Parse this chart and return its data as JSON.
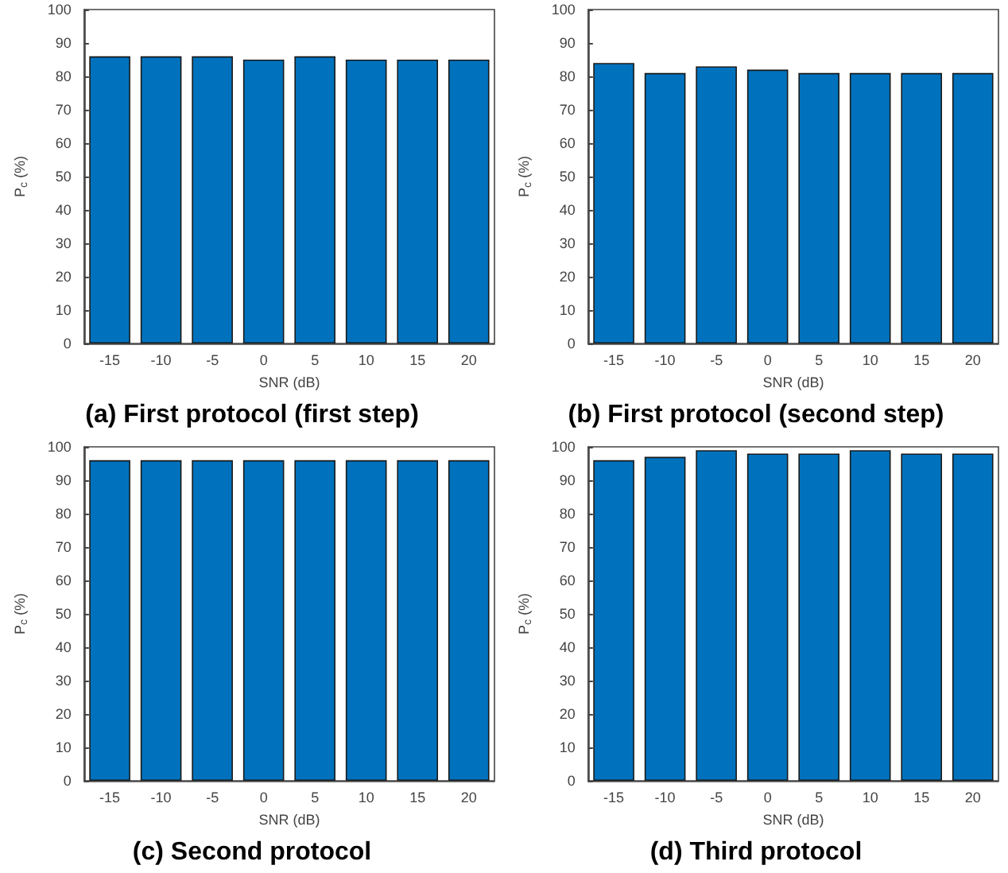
{
  "chart_data": [
    {
      "type": "bar",
      "title": "(a) First protocol (first step)",
      "xlabel": "SNR (dB)",
      "ylabel": "P$_{c}$ (%)",
      "categories": [
        "-15",
        "-10",
        "-5",
        "0",
        "5",
        "10",
        "15",
        "20"
      ],
      "values": [
        86,
        86,
        86,
        85,
        86,
        85,
        85,
        85
      ],
      "color": "#0072bd",
      "ylim": [
        0,
        100
      ],
      "yticks": [
        0,
        10,
        20,
        30,
        40,
        50,
        60,
        70,
        80,
        90,
        100
      ],
      "grid": false
    },
    {
      "type": "bar",
      "title": "(b) First protocol (second step)",
      "xlabel": "SNR (dB)",
      "ylabel": "P$_{c}$ (%)",
      "categories": [
        "-15",
        "-10",
        "-5",
        "0",
        "5",
        "10",
        "15",
        "20"
      ],
      "values": [
        84,
        81,
        83,
        82,
        81,
        81,
        81,
        81
      ],
      "color": "#0072bd",
      "ylim": [
        0,
        100
      ],
      "yticks": [
        0,
        10,
        20,
        30,
        40,
        50,
        60,
        70,
        80,
        90,
        100
      ],
      "grid": false
    },
    {
      "type": "bar",
      "title": "(c) Second protocol",
      "xlabel": "SNR (dB)",
      "ylabel": "P$_{c}$ (%)",
      "categories": [
        "-15",
        "-10",
        "-5",
        "0",
        "5",
        "10",
        "15",
        "20"
      ],
      "values": [
        96,
        96,
        96,
        96,
        96,
        96,
        96,
        96
      ],
      "color": "#0072bd",
      "ylim": [
        0,
        100
      ],
      "yticks": [
        0,
        10,
        20,
        30,
        40,
        50,
        60,
        70,
        80,
        90,
        100
      ],
      "grid": false
    },
    {
      "type": "bar",
      "title": "(d) Third protocol",
      "xlabel": "SNR (dB)",
      "ylabel": "P$_{c}$ (%)",
      "categories": [
        "-15",
        "-10",
        "-5",
        "0",
        "5",
        "10",
        "15",
        "20"
      ],
      "values": [
        96,
        97,
        99,
        98,
        98,
        99,
        98,
        98
      ],
      "color": "#0072bd",
      "ylim": [
        0,
        100
      ],
      "yticks": [
        0,
        10,
        20,
        30,
        40,
        50,
        60,
        70,
        80,
        90,
        100
      ],
      "grid": false
    }
  ]
}
